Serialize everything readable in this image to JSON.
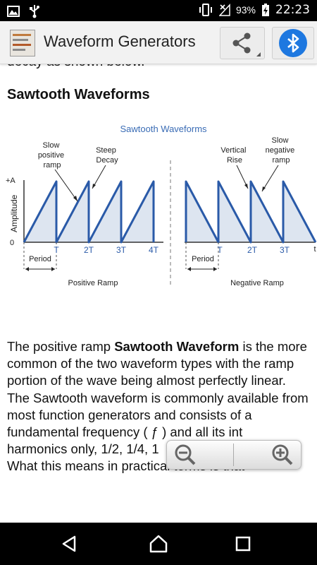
{
  "status_bar": {
    "battery_percent": "93%",
    "time": "22:23",
    "icons": [
      "image-icon",
      "usb-icon",
      "vibrate-icon",
      "no-signal-icon",
      "battery-charging-icon"
    ]
  },
  "app_bar": {
    "title": "Waveform Generators",
    "icons": [
      "app-logo",
      "share-icon",
      "bluetooth-icon"
    ]
  },
  "content": {
    "cut_text_top": "decay as shown below.",
    "section_heading": "Sawtooth Waveforms",
    "paragraph": {
      "p1": "The positive ramp ",
      "bold": "Sawtooth Waveform",
      "p2": " is the more common of the two waveform types with the ramp portion of the wave being almost perfectly linear. The Sawtooth waveform is commonly available from most function generators and consists of a fundamental frequency ( ƒ ) and all its int",
      "p3": "harmonics only, 1/2, 1/4, 1",
      "p4": "What this means in practical terms is that"
    }
  },
  "figure": {
    "title": "Sawtooth Waveforms",
    "y_label": "Amplitude",
    "y_top_label": "+A",
    "y_zero_label": "0",
    "left": {
      "ticks": [
        "T",
        "2T",
        "3T",
        "4T"
      ],
      "annotation_slow": [
        "Slow",
        "positive",
        "ramp"
      ],
      "annotation_steep": [
        "Steep",
        "Decay"
      ],
      "period_label": "Period",
      "caption": "Positive Ramp"
    },
    "right": {
      "ticks": [
        "T",
        "2T",
        "3T"
      ],
      "t_label": "t",
      "annotation_vertical": [
        "Vertical",
        "Rise"
      ],
      "annotation_slow": [
        "Slow",
        "negative",
        "ramp"
      ],
      "period_label": "Period",
      "caption": "Negative Ramp"
    },
    "colors": {
      "wave": "#2a5aa8",
      "fill": "#dde5f0",
      "title": "#3a6cb5"
    }
  },
  "zoom_controls": {
    "icons": [
      "zoom-out-icon",
      "zoom-in-icon"
    ]
  },
  "nav_bar": {
    "icons": [
      "back-icon",
      "home-icon",
      "recents-icon"
    ]
  }
}
